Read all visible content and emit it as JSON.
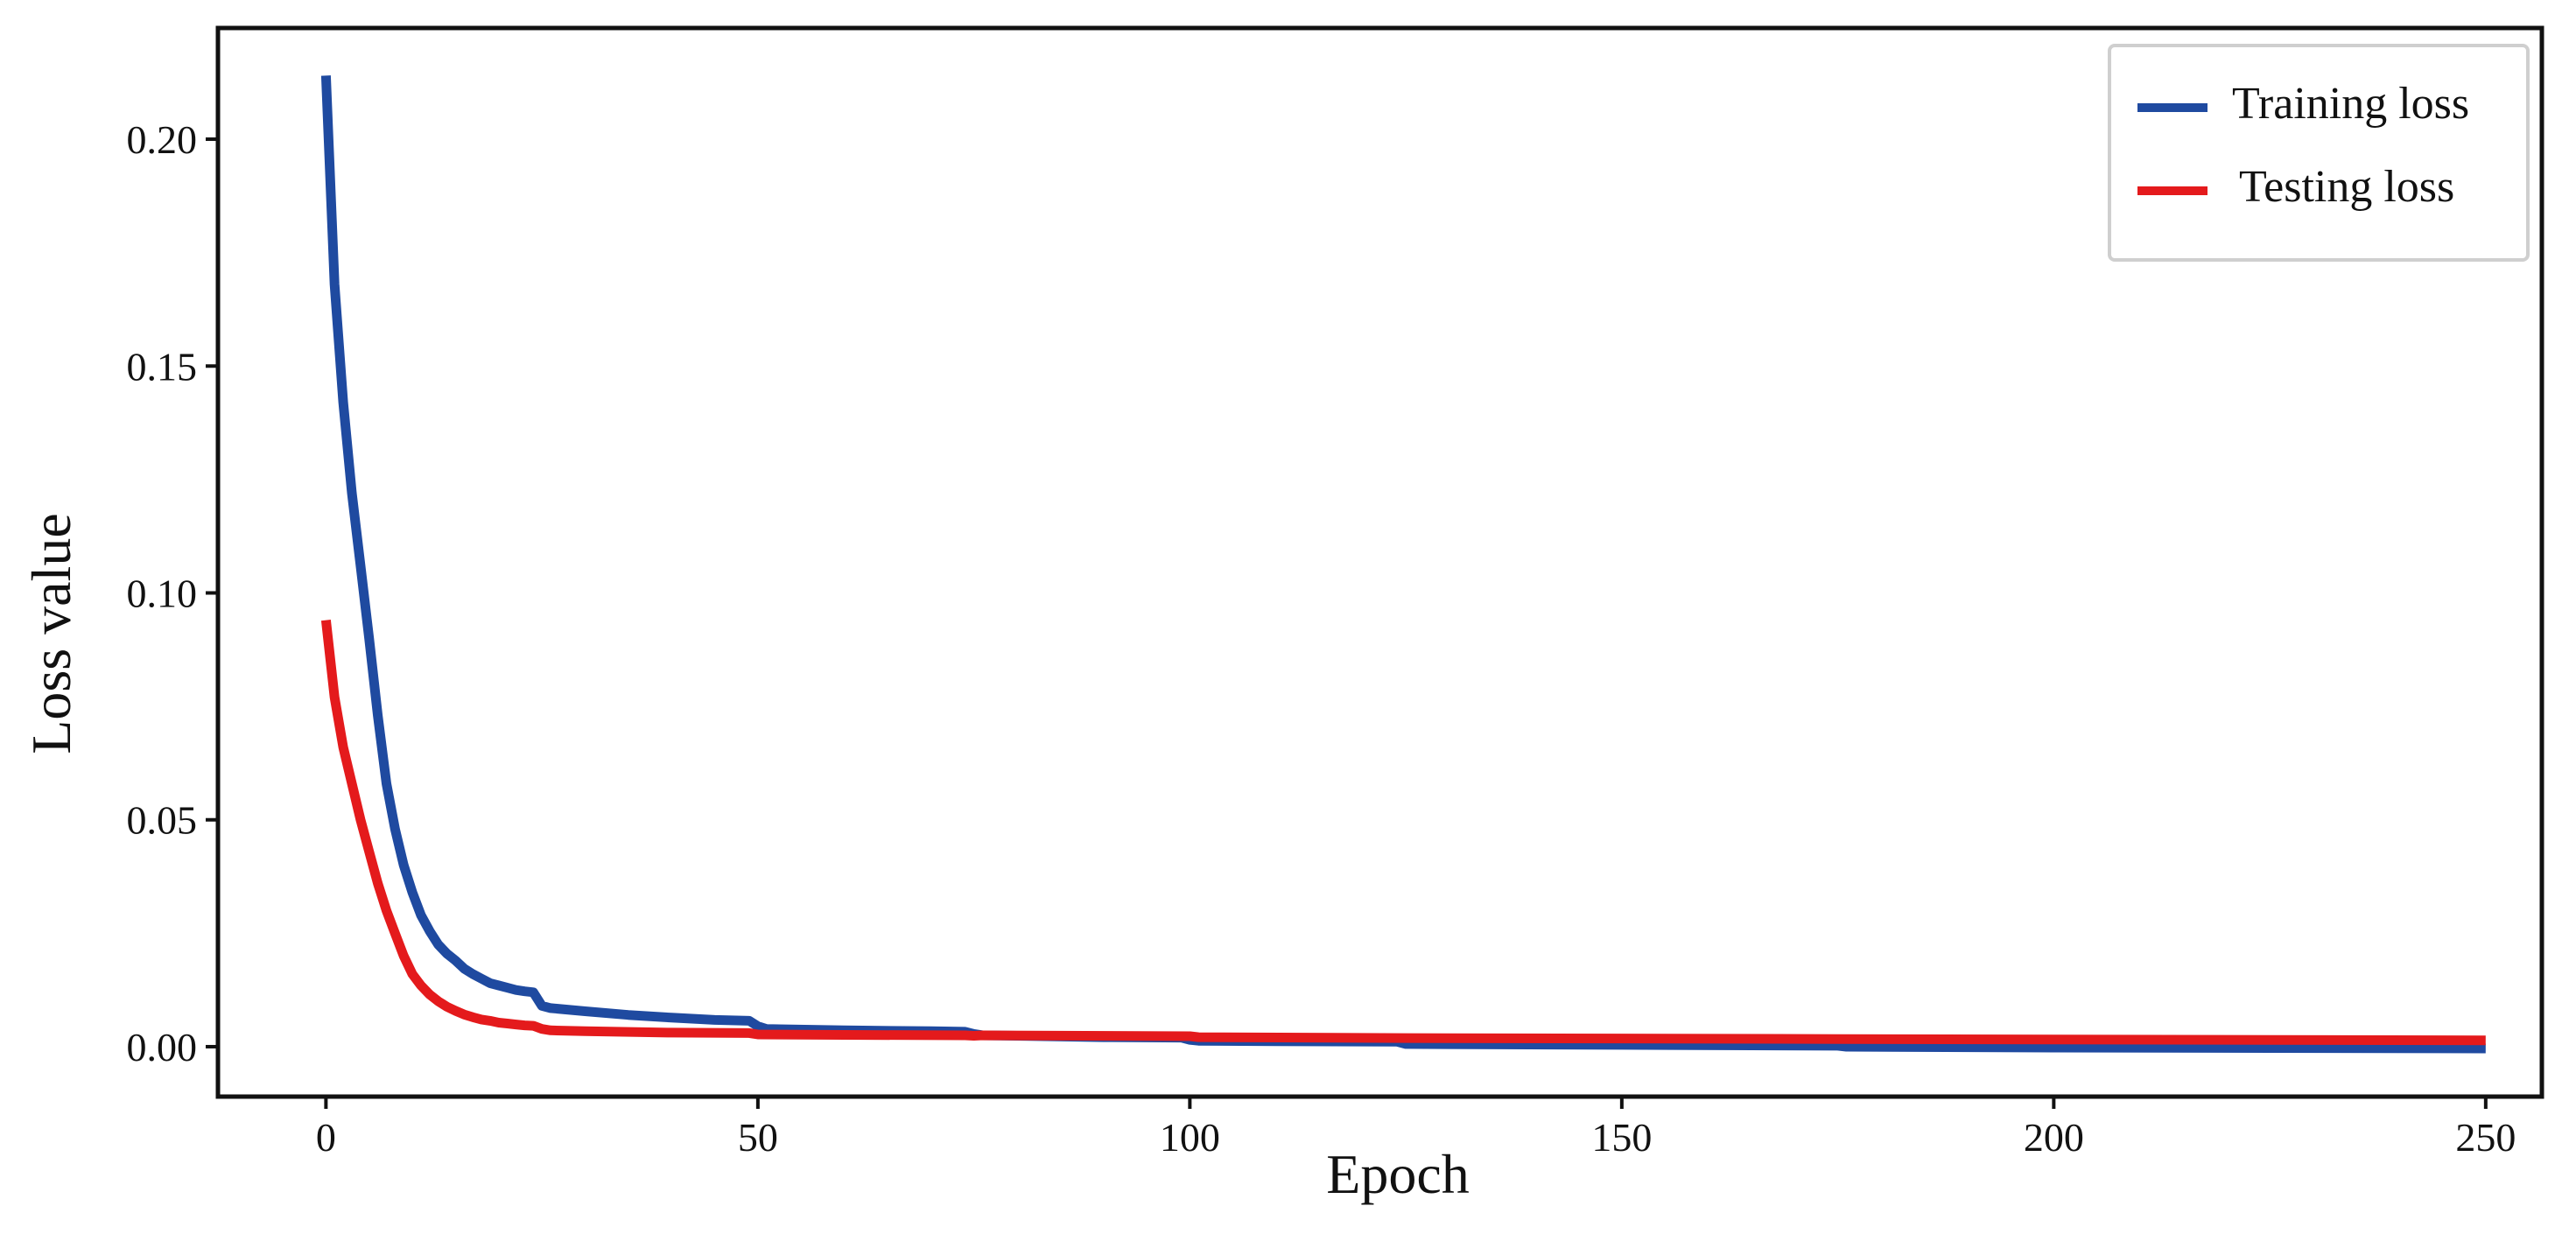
{
  "colors": {
    "training": "#1f4aa0",
    "testing": "#e41a1c",
    "axis": "#111111",
    "legend_border": "#cfcfcf"
  },
  "chart_data": {
    "type": "line",
    "title": "",
    "xlabel": "Epoch",
    "ylabel": "Loss value",
    "xlim": [
      -12.5,
      256.5
    ],
    "ylim": [
      -0.011,
      0.2245
    ],
    "xticks": [
      0,
      50,
      100,
      150,
      200,
      250
    ],
    "xtick_labels": [
      "0",
      "50",
      "100",
      "150",
      "200",
      "250"
    ],
    "yticks": [
      0.0,
      0.05,
      0.1,
      0.15,
      0.2
    ],
    "ytick_labels": [
      "0.00",
      "0.05",
      "0.10",
      "0.15",
      "0.20"
    ],
    "grid": false,
    "legend_position": "top-right",
    "series": [
      {
        "name": "Training loss",
        "color": "#1f4aa0",
        "x": [
          0,
          1,
          2,
          3,
          4,
          5,
          6,
          7,
          8,
          9,
          10,
          11,
          12,
          13,
          14,
          15,
          16,
          17,
          18,
          19,
          20,
          21,
          22,
          23,
          24,
          25,
          26,
          30,
          35,
          40,
          45,
          49,
          50,
          51,
          60,
          70,
          74,
          75,
          76,
          80,
          90,
          99,
          100,
          101,
          110,
          124,
          125,
          150,
          175,
          176,
          200,
          225,
          250
        ],
        "y": [
          0.214,
          0.168,
          0.142,
          0.122,
          0.106,
          0.09,
          0.073,
          0.058,
          0.048,
          0.04,
          0.034,
          0.029,
          0.0255,
          0.0225,
          0.0205,
          0.019,
          0.0172,
          0.016,
          0.015,
          0.014,
          0.0135,
          0.013,
          0.0125,
          0.0122,
          0.012,
          0.009,
          0.0085,
          0.0078,
          0.007,
          0.0064,
          0.0059,
          0.0057,
          0.0045,
          0.0039,
          0.0036,
          0.0034,
          0.0033,
          0.0028,
          0.0025,
          0.0024,
          0.0021,
          0.002,
          0.0015,
          0.0013,
          0.0012,
          0.0011,
          0.0006,
          0.0004,
          0.0002,
          0.0,
          -0.0002,
          -0.0003,
          -0.0004
        ]
      },
      {
        "name": "Testing loss",
        "color": "#e41a1c",
        "x": [
          0,
          1,
          2,
          3,
          4,
          5,
          6,
          7,
          8,
          9,
          10,
          11,
          12,
          13,
          14,
          15,
          16,
          17,
          18,
          19,
          20,
          21,
          22,
          23,
          24,
          25,
          26,
          30,
          40,
          49,
          50,
          60,
          74,
          75,
          76,
          100,
          101,
          125,
          150,
          175,
          200,
          225,
          250
        ],
        "y": [
          0.094,
          0.077,
          0.066,
          0.058,
          0.05,
          0.043,
          0.036,
          0.03,
          0.025,
          0.02,
          0.016,
          0.0135,
          0.0115,
          0.01,
          0.0088,
          0.0079,
          0.0071,
          0.0065,
          0.006,
          0.0057,
          0.0053,
          0.0051,
          0.0049,
          0.0047,
          0.0046,
          0.0039,
          0.0036,
          0.0034,
          0.0031,
          0.003,
          0.0027,
          0.0026,
          0.0025,
          0.0024,
          0.0025,
          0.0023,
          0.0021,
          0.0019,
          0.0018,
          0.0017,
          0.0016,
          0.0015,
          0.0014
        ]
      }
    ]
  }
}
